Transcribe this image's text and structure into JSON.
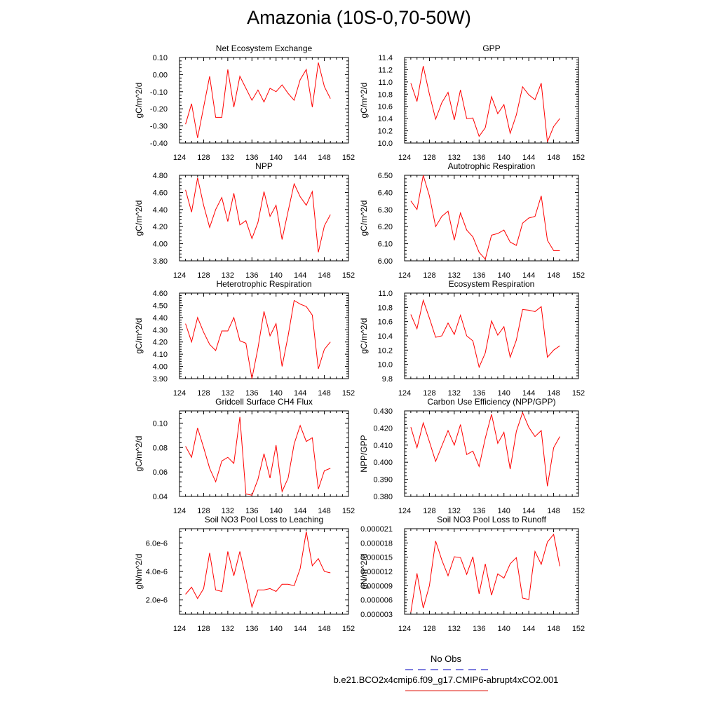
{
  "title": "Amazonia (10S-0,70-50W)",
  "legend": {
    "items": [
      {
        "label": "No Obs",
        "color": "#3333cc",
        "dash": true
      },
      {
        "label": "b.e21.BCO2x4cmip6.f09_g17.CMIP6-abrupt4xCO2.001",
        "color": "#e8453c",
        "dash": false
      }
    ]
  },
  "chart_data": [
    {
      "type": "line",
      "title": "Net Ecosystem Exchange",
      "ylabel": "gC/m^2/d",
      "x": [
        125,
        126,
        127,
        128,
        129,
        130,
        131,
        132,
        133,
        134,
        135,
        136,
        137,
        138,
        139,
        140,
        141,
        142,
        143,
        144,
        145,
        146,
        147,
        148,
        149
      ],
      "series": [
        {
          "color": "#ff0000",
          "values": [
            -0.29,
            -0.17,
            -0.37,
            -0.19,
            -0.01,
            -0.25,
            -0.25,
            0.03,
            -0.19,
            -0.01,
            -0.08,
            -0.15,
            -0.09,
            -0.16,
            -0.08,
            -0.1,
            -0.06,
            -0.11,
            -0.15,
            -0.03,
            0.03,
            -0.19,
            0.07,
            -0.07,
            -0.14
          ]
        }
      ],
      "xlim": [
        124,
        152
      ],
      "ylim": [
        -0.4,
        0.1
      ],
      "xticks": [
        124,
        128,
        132,
        136,
        140,
        144,
        148,
        152
      ],
      "yticks": [
        -0.4,
        -0.3,
        -0.2,
        -0.1,
        0.0,
        0.1
      ],
      "yticklabels": [
        "-0.40",
        "-0.30",
        "-0.20",
        "-0.10",
        "0.00",
        "0.10"
      ]
    },
    {
      "type": "line",
      "title": "GPP",
      "ylabel": "gC/m^2/d",
      "x": [
        125,
        126,
        127,
        128,
        129,
        130,
        131,
        132,
        133,
        134,
        135,
        136,
        137,
        138,
        139,
        140,
        141,
        142,
        143,
        144,
        145,
        146,
        147,
        148,
        149
      ],
      "series": [
        {
          "color": "#ff0000",
          "values": [
            10.98,
            10.68,
            11.26,
            10.8,
            10.39,
            10.66,
            10.83,
            10.38,
            10.87,
            10.4,
            10.41,
            10.11,
            10.25,
            10.76,
            10.48,
            10.63,
            10.16,
            10.46,
            10.92,
            10.79,
            10.71,
            10.98,
            10.02,
            10.27,
            10.4
          ]
        }
      ],
      "xlim": [
        124,
        152
      ],
      "ylim": [
        10.0,
        11.4
      ],
      "xticks": [
        124,
        128,
        132,
        136,
        140,
        144,
        148,
        152
      ],
      "yticks": [
        10.0,
        10.2,
        10.4,
        10.6,
        10.8,
        11.0,
        11.2,
        11.4
      ],
      "yticklabels": [
        "10.0",
        "10.2",
        "10.4",
        "10.6",
        "10.8",
        "11.0",
        "11.2",
        "11.4"
      ]
    },
    {
      "type": "line",
      "title": "NPP",
      "ylabel": "gC/m^2/d",
      "x": [
        125,
        126,
        127,
        128,
        129,
        130,
        131,
        132,
        133,
        134,
        135,
        136,
        137,
        138,
        139,
        140,
        141,
        142,
        143,
        144,
        145,
        146,
        147,
        148,
        149
      ],
      "series": [
        {
          "color": "#ff0000",
          "values": [
            4.63,
            4.37,
            4.77,
            4.45,
            4.19,
            4.4,
            4.54,
            4.26,
            4.59,
            4.22,
            4.27,
            4.06,
            4.25,
            4.61,
            4.32,
            4.45,
            4.05,
            4.38,
            4.7,
            4.55,
            4.45,
            4.61,
            3.9,
            4.21,
            4.34
          ]
        }
      ],
      "xlim": [
        124,
        152
      ],
      "ylim": [
        3.8,
        4.8
      ],
      "xticks": [
        124,
        128,
        132,
        136,
        140,
        144,
        148,
        152
      ],
      "yticks": [
        3.8,
        4.0,
        4.2,
        4.4,
        4.6,
        4.8
      ],
      "yticklabels": [
        "3.80",
        "4.00",
        "4.20",
        "4.40",
        "4.60",
        "4.80"
      ]
    },
    {
      "type": "line",
      "title": "Autotrophic Respiration",
      "ylabel": "gC/m^2/d",
      "x": [
        125,
        126,
        127,
        128,
        129,
        130,
        131,
        132,
        133,
        134,
        135,
        136,
        137,
        138,
        139,
        140,
        141,
        142,
        143,
        144,
        145,
        146,
        147,
        148,
        149
      ],
      "series": [
        {
          "color": "#ff0000",
          "values": [
            6.35,
            6.3,
            6.5,
            6.38,
            6.2,
            6.26,
            6.29,
            6.12,
            6.28,
            6.18,
            6.14,
            6.05,
            6.01,
            6.15,
            6.16,
            6.18,
            6.11,
            6.09,
            6.22,
            6.25,
            6.26,
            6.38,
            6.12,
            6.06,
            6.06
          ]
        }
      ],
      "xlim": [
        124,
        152
      ],
      "ylim": [
        6.0,
        6.5
      ],
      "xticks": [
        124,
        128,
        132,
        136,
        140,
        144,
        148,
        152
      ],
      "yticks": [
        6.0,
        6.1,
        6.2,
        6.3,
        6.4,
        6.5
      ],
      "yticklabels": [
        "6.00",
        "6.10",
        "6.20",
        "6.30",
        "6.40",
        "6.50"
      ]
    },
    {
      "type": "line",
      "title": "Heterotrophic Respiration",
      "ylabel": "gC/m^2/d",
      "x": [
        125,
        126,
        127,
        128,
        129,
        130,
        131,
        132,
        133,
        134,
        135,
        136,
        137,
        138,
        139,
        140,
        141,
        142,
        143,
        144,
        145,
        146,
        147,
        148,
        149
      ],
      "series": [
        {
          "color": "#ff0000",
          "values": [
            4.35,
            4.2,
            4.4,
            4.28,
            4.18,
            4.13,
            4.29,
            4.29,
            4.4,
            4.21,
            4.19,
            3.9,
            4.15,
            4.45,
            4.25,
            4.35,
            4.0,
            4.25,
            4.54,
            4.51,
            4.49,
            4.42,
            3.98,
            4.14,
            4.2
          ]
        }
      ],
      "xlim": [
        124,
        152
      ],
      "ylim": [
        3.9,
        4.6
      ],
      "xticks": [
        124,
        128,
        132,
        136,
        140,
        144,
        148,
        152
      ],
      "yticks": [
        3.9,
        4.0,
        4.1,
        4.2,
        4.3,
        4.4,
        4.5,
        4.6
      ],
      "yticklabels": [
        "3.90",
        "4.00",
        "4.10",
        "4.20",
        "4.30",
        "4.40",
        "4.50",
        "4.60"
      ]
    },
    {
      "type": "line",
      "title": "Ecosystem Respiration",
      "ylabel": "gC/m^2/d",
      "x": [
        125,
        126,
        127,
        128,
        129,
        130,
        131,
        132,
        133,
        134,
        135,
        136,
        137,
        138,
        139,
        140,
        141,
        142,
        143,
        144,
        145,
        146,
        147,
        148,
        149
      ],
      "series": [
        {
          "color": "#ff0000",
          "values": [
            10.7,
            10.5,
            10.9,
            10.65,
            10.38,
            10.4,
            10.58,
            10.42,
            10.69,
            10.4,
            10.33,
            9.96,
            10.16,
            10.61,
            10.41,
            10.53,
            10.1,
            10.34,
            10.77,
            10.76,
            10.74,
            10.81,
            10.1,
            10.2,
            10.26
          ]
        }
      ],
      "xlim": [
        124,
        152
      ],
      "ylim": [
        9.8,
        11.0
      ],
      "xticks": [
        124,
        128,
        132,
        136,
        140,
        144,
        148,
        152
      ],
      "yticks": [
        9.8,
        10.0,
        10.2,
        10.4,
        10.6,
        10.8,
        11.0
      ],
      "yticklabels": [
        "9.8",
        "10.0",
        "10.2",
        "10.4",
        "10.6",
        "10.8",
        "11.0"
      ]
    },
    {
      "type": "line",
      "title": "Gridcell Surface CH4 Flux",
      "ylabel": "gC/m^2/d",
      "x": [
        125,
        126,
        127,
        128,
        129,
        130,
        131,
        132,
        133,
        134,
        135,
        136,
        137,
        138,
        139,
        140,
        141,
        142,
        143,
        144,
        145,
        146,
        147,
        148,
        149
      ],
      "series": [
        {
          "color": "#ff0000",
          "values": [
            0.081,
            0.072,
            0.096,
            0.08,
            0.063,
            0.052,
            0.069,
            0.072,
            0.067,
            0.105,
            0.042,
            0.041,
            0.054,
            0.075,
            0.055,
            0.082,
            0.044,
            0.055,
            0.083,
            0.098,
            0.085,
            0.088,
            0.046,
            0.061,
            0.063
          ]
        }
      ],
      "xlim": [
        124,
        152
      ],
      "ylim": [
        0.04,
        0.11
      ],
      "xticks": [
        124,
        128,
        132,
        136,
        140,
        144,
        148,
        152
      ],
      "yticks": [
        0.04,
        0.06,
        0.08,
        0.1
      ],
      "yticklabels": [
        "0.04",
        "0.06",
        "0.08",
        "0.10"
      ]
    },
    {
      "type": "line",
      "title": "Carbon Use Efficiency (NPP/GPP)",
      "ylabel": "NPP/GPP",
      "x": [
        125,
        126,
        127,
        128,
        129,
        130,
        131,
        132,
        133,
        134,
        135,
        136,
        137,
        138,
        139,
        140,
        141,
        142,
        143,
        144,
        145,
        146,
        147,
        148,
        149
      ],
      "series": [
        {
          "color": "#ff0000",
          "values": [
            0.4205,
            0.4085,
            0.423,
            0.412,
            0.4005,
            0.4095,
            0.4185,
            0.41,
            0.422,
            0.4045,
            0.4065,
            0.3975,
            0.414,
            0.428,
            0.411,
            0.4175,
            0.396,
            0.418,
            0.429,
            0.4205,
            0.415,
            0.4185,
            0.386,
            0.4085,
            0.415
          ]
        }
      ],
      "xlim": [
        124,
        152
      ],
      "ylim": [
        0.38,
        0.43
      ],
      "xticks": [
        124,
        128,
        132,
        136,
        140,
        144,
        148,
        152
      ],
      "yticks": [
        0.38,
        0.39,
        0.4,
        0.41,
        0.42,
        0.43
      ],
      "yticklabels": [
        "0.380",
        "0.390",
        "0.400",
        "0.410",
        "0.420",
        "0.430"
      ]
    },
    {
      "type": "line",
      "title": "Soil NO3 Pool Loss to Leaching",
      "ylabel": "gN/m^2/d",
      "x": [
        125,
        126,
        127,
        128,
        129,
        130,
        131,
        132,
        133,
        134,
        135,
        136,
        137,
        138,
        139,
        140,
        141,
        142,
        143,
        144,
        145,
        146,
        147,
        148,
        149
      ],
      "series": [
        {
          "color": "#ff0000",
          "values": [
            2.4e-06,
            2.9e-06,
            2.1e-06,
            2.8e-06,
            5.3e-06,
            2.7e-06,
            2.6e-06,
            5.4e-06,
            3.7e-06,
            5.4e-06,
            3.5e-06,
            1.5e-06,
            2.7e-06,
            2.7e-06,
            2.8e-06,
            2.6e-06,
            3.1e-06,
            3.1e-06,
            3e-06,
            4.2e-06,
            6.8e-06,
            4.4e-06,
            4.9e-06,
            4e-06,
            3.9e-06
          ]
        }
      ],
      "xlim": [
        124,
        152
      ],
      "ylim": [
        1e-06,
        7e-06
      ],
      "xticks": [
        124,
        128,
        132,
        136,
        140,
        144,
        148,
        152
      ],
      "yticks": [
        2e-06,
        4e-06,
        6e-06
      ],
      "yticklabels": [
        "2.0e-6",
        "4.0e-6",
        "6.0e-6"
      ]
    },
    {
      "type": "line",
      "title": "Soil NO3 Pool Loss to Runoff",
      "ylabel": "gN/m^2/d",
      "x": [
        125,
        126,
        127,
        128,
        129,
        130,
        131,
        132,
        133,
        134,
        135,
        136,
        137,
        138,
        139,
        140,
        141,
        142,
        143,
        144,
        145,
        146,
        147,
        148,
        149
      ],
      "series": [
        {
          "color": "#ff0000",
          "values": [
            3.4e-06,
            1.16e-05,
            4.3e-06,
            9e-06,
            1.84e-05,
            1.44e-05,
            1.11e-05,
            1.51e-05,
            1.49e-05,
            1.14e-05,
            1.51e-05,
            7.3e-06,
            1.36e-05,
            7e-06,
            1.15e-05,
            1.06e-05,
            1.36e-05,
            1.49e-05,
            6.4e-06,
            6.1e-06,
            1.62e-05,
            1.35e-05,
            1.82e-05,
            1.98e-05,
            1.31e-05
          ]
        }
      ],
      "xlim": [
        124,
        152
      ],
      "ylim": [
        3e-06,
        2.1e-05
      ],
      "xticks": [
        124,
        128,
        132,
        136,
        140,
        144,
        148,
        152
      ],
      "yticks": [
        3e-06,
        6e-06,
        9e-06,
        1.2e-05,
        1.5e-05,
        1.8e-05,
        2.1e-05
      ],
      "yticklabels": [
        "0.000003",
        "0.000006",
        "0.000009",
        "0.000012",
        "0.000015",
        "0.000018",
        "0.000021"
      ]
    }
  ]
}
